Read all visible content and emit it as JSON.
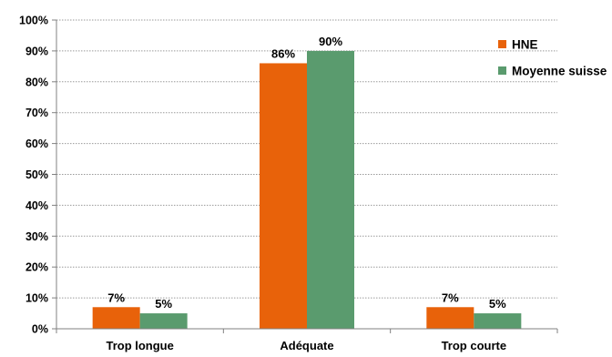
{
  "chart_data": {
    "type": "bar",
    "title": "",
    "xlabel": "",
    "ylabel": "",
    "categories": [
      "Trop longue",
      "Adéquate",
      "Trop courte"
    ],
    "series": [
      {
        "name": "HNE",
        "values": [
          7,
          86,
          7
        ],
        "labels": [
          "7%",
          "86%",
          "7%"
        ],
        "color": "#e8620a"
      },
      {
        "name": "Moyenne suisse",
        "values": [
          5,
          90,
          5
        ],
        "labels": [
          "5%",
          "90%",
          "5%"
        ],
        "color": "#5a9b6e"
      }
    ],
    "ylim": [
      0,
      100
    ],
    "yticks": [
      0,
      10,
      20,
      30,
      40,
      50,
      60,
      70,
      80,
      90,
      100
    ],
    "ytick_labels": [
      "0%",
      "10%",
      "20%",
      "30%",
      "40%",
      "50%",
      "60%",
      "70%",
      "80%",
      "90%",
      "100%"
    ],
    "grid": true,
    "grid_style": "dotted",
    "legend_position": "top-right"
  }
}
